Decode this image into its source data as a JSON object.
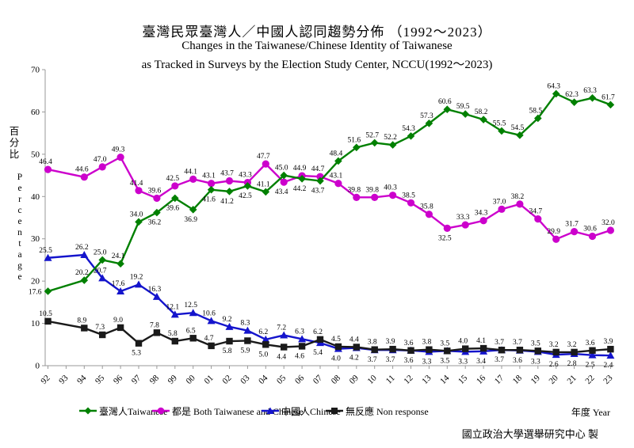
{
  "title": {
    "zh": "臺灣民眾臺灣人／中國人認同趨勢分佈 （1992～2023）",
    "en_line1": "Changes in the Taiwanese/Chinese Identity of Taiwanese",
    "en_line2": "as Tracked in Surveys by the Election Study Center, NCCU(1992～2023)"
  },
  "footer": {
    "xaxis_label": "年度 Year",
    "source": "國立政治大學選舉研究中心 製"
  },
  "chart_data": {
    "type": "line",
    "title": "臺灣民眾臺灣人／中國人認同趨勢分佈 （1992～2023）",
    "subtitle": "Changes in the Taiwanese/Chinese Identity of Taiwanese as Tracked in Surveys by the Election Study Center, NCCU(1992～2023)",
    "ylabel_zh": "百分比",
    "ylabel_en": "Percentage",
    "xlabel": "年度 Year",
    "ylim": [
      0,
      70
    ],
    "yticks": [
      0,
      10,
      20,
      30,
      40,
      50,
      60,
      70
    ],
    "grid": false,
    "legend_position": "bottom",
    "x_tick_labels": [
      "92",
      "93",
      "94",
      "95",
      "96",
      "97",
      "98",
      "99",
      "00",
      "01",
      "02",
      "03",
      "04",
      "05",
      "06",
      "07",
      "08",
      "09",
      "10",
      "11",
      "12",
      "13",
      "14",
      "15",
      "16",
      "17",
      "18",
      "19",
      "20",
      "21",
      "22",
      "23"
    ],
    "x_years": [
      "92",
      "94",
      "95",
      "96",
      "97",
      "98",
      "99",
      "00",
      "01",
      "02",
      "03",
      "04",
      "05",
      "06",
      "07",
      "08",
      "09",
      "10",
      "11",
      "12",
      "13",
      "14",
      "15",
      "16",
      "17",
      "18",
      "19",
      "20",
      "21",
      "22",
      "23"
    ],
    "x_tick_indices": [
      0,
      2,
      3,
      4,
      5,
      6,
      7,
      8,
      9,
      10,
      11,
      12,
      13,
      14,
      15,
      16,
      17,
      18,
      19,
      20,
      21,
      22,
      23,
      24,
      25,
      26,
      27,
      28,
      29,
      30,
      31
    ],
    "series": [
      {
        "name": "both-taiwanese-and-chinese",
        "legend_label": "都是 Both Taiwanese and Chinese",
        "color": "#CC00CC",
        "marker": "circle",
        "values": [
          46.4,
          44.6,
          47.0,
          49.3,
          41.4,
          39.6,
          42.5,
          44.1,
          43.1,
          43.7,
          43.3,
          47.7,
          43.4,
          44.9,
          44.7,
          43.1,
          39.8,
          39.8,
          40.3,
          38.5,
          35.8,
          32.5,
          33.3,
          34.3,
          37.0,
          38.2,
          34.7,
          29.9,
          31.7,
          30.6,
          32.0
        ],
        "label_side": [
          "a",
          "a",
          "a",
          "a",
          "a",
          "a",
          "a",
          "a",
          "a",
          "a",
          "a",
          "a",
          "b",
          "a",
          "a",
          "a",
          "a",
          "a",
          "a",
          "a",
          "a",
          "b",
          "a",
          "a",
          "a",
          "a",
          "a",
          "a",
          "a",
          "a",
          "a"
        ]
      },
      {
        "name": "chinese",
        "legend_label": "中國人Chinese",
        "color": "#1414CC",
        "marker": "triangle",
        "values": [
          25.5,
          26.2,
          20.7,
          17.6,
          19.2,
          16.3,
          12.1,
          12.5,
          10.6,
          9.2,
          8.3,
          6.2,
          7.2,
          6.3,
          5.4,
          4.0,
          4.2,
          3.7,
          3.7,
          3.6,
          3.3,
          3.5,
          3.3,
          3.4,
          3.7,
          3.6,
          3.3,
          2.6,
          2.8,
          2.5,
          2.4
        ],
        "label_side": [
          "a",
          "a",
          "a",
          "a",
          "a",
          "a",
          "a",
          "a",
          "a",
          "a",
          "a",
          "a",
          "a",
          "a",
          "b",
          "b",
          "b",
          "b",
          "b",
          "b",
          "b",
          "b",
          "b",
          "b",
          "b",
          "b",
          "b",
          "b",
          "b",
          "b",
          "b"
        ]
      },
      {
        "name": "non-response",
        "legend_label": "無反應 Non response",
        "color": "#1A1A1A",
        "marker": "square",
        "values": [
          10.5,
          8.9,
          7.3,
          9.0,
          5.3,
          7.8,
          5.8,
          6.5,
          4.7,
          5.8,
          5.9,
          5.0,
          4.4,
          4.6,
          6.2,
          4.5,
          4.4,
          3.8,
          3.9,
          3.6,
          3.8,
          3.5,
          4.0,
          4.1,
          3.7,
          3.7,
          3.5,
          3.2,
          3.2,
          3.6,
          3.9
        ],
        "label_side": [
          "a",
          "a",
          "a",
          "a",
          "b",
          "a",
          "a",
          "a",
          "a",
          "b",
          "b",
          "b",
          "b",
          "b",
          "a",
          "a",
          "a",
          "a",
          "a",
          "a",
          "a",
          "a",
          "a",
          "a",
          "a",
          "a",
          "a",
          "a",
          "a",
          "a",
          "a"
        ]
      },
      {
        "name": "taiwanese",
        "legend_label": "臺灣人Taiwanese",
        "color": "#008000",
        "marker": "diamond",
        "values": [
          17.6,
          20.2,
          25.0,
          24.1,
          34.0,
          36.2,
          39.6,
          36.9,
          41.6,
          41.2,
          42.5,
          41.1,
          45.0,
          44.2,
          43.7,
          48.4,
          51.6,
          52.7,
          52.2,
          54.3,
          57.3,
          60.6,
          59.5,
          58.2,
          55.5,
          54.5,
          58.5,
          64.3,
          62.3,
          63.3,
          61.7
        ],
        "label_side": [
          "l",
          "a",
          "a",
          "a",
          "a",
          "b",
          "b",
          "b",
          "b",
          "b",
          "b",
          "a",
          "a",
          "b",
          "b",
          "a",
          "a",
          "a",
          "a",
          "a",
          "a",
          "a",
          "a",
          "a",
          "a",
          "a",
          "a",
          "a",
          "a",
          "a",
          "a"
        ]
      }
    ],
    "legend_order": [
      "taiwanese",
      "both-taiwanese-and-chinese",
      "chinese",
      "non-response"
    ],
    "legend_x_positions": [
      100,
      192,
      330,
      411
    ]
  }
}
